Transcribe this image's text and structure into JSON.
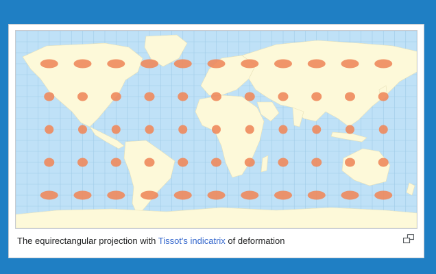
{
  "caption": {
    "prefix": "The equirectangular projection with ",
    "link": "Tissot's indicatrix",
    "suffix": " of deformation"
  },
  "icons": {
    "enlarge": "enlarge-icon"
  },
  "colors": {
    "page_background": "#1f7fc4",
    "ocean": "#bfe1f7",
    "land": "#fdf9d9",
    "graticule": "#9fcbe8",
    "indicatrix": "#ee8a5c",
    "link": "#3366cc"
  },
  "map": {
    "projection": "equirectangular",
    "indicatrix": {
      "longitudes": [
        -150,
        -120,
        -90,
        -60,
        -30,
        0,
        30,
        60,
        90,
        120,
        150
      ],
      "latitudes": [
        60,
        30,
        0,
        -30,
        -60
      ]
    }
  }
}
